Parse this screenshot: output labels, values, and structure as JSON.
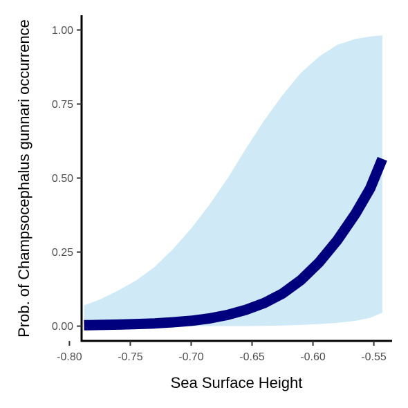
{
  "chart_data": {
    "type": "line",
    "title": "",
    "xlabel": "Sea Surface Height",
    "ylabel": "Prob. of  Champsocephalus gunnari  occurrence",
    "xlim": [
      -0.79,
      -0.535
    ],
    "ylim": [
      -0.05,
      1.05
    ],
    "xticks": [
      -0.8,
      -0.75,
      -0.7,
      -0.65,
      -0.6,
      -0.55
    ],
    "xtick_labels": [
      "-0.80",
      "-0.75",
      "-0.70",
      "-0.65",
      "-0.60",
      "-0.55"
    ],
    "yticks": [
      0.0,
      0.25,
      0.5,
      0.75,
      1.0
    ],
    "ytick_labels": [
      "0.00",
      "0.25",
      "0.50",
      "0.75",
      "1.00"
    ],
    "grid": false,
    "legend": "none",
    "colors": {
      "line": "#00007f",
      "ribbon": "#cfeaf6",
      "axis": "#000000",
      "tick_text": "#4d4d4d"
    },
    "series": [
      {
        "x": [
          -0.788,
          -0.775,
          -0.76,
          -0.745,
          -0.73,
          -0.715,
          -0.7,
          -0.685,
          -0.67,
          -0.655,
          -0.64,
          -0.625,
          -0.61,
          -0.595,
          -0.58,
          -0.565,
          -0.553,
          -0.543
        ],
        "y": [
          0.003,
          0.004,
          0.005,
          0.007,
          0.009,
          0.013,
          0.018,
          0.026,
          0.038,
          0.055,
          0.078,
          0.11,
          0.155,
          0.215,
          0.29,
          0.38,
          0.465,
          0.565
        ],
        "lower": [
          0.0,
          0.0,
          0.0,
          0.0,
          0.0,
          0.0,
          0.0,
          0.0,
          0.0,
          0.0,
          0.001,
          0.002,
          0.004,
          0.007,
          0.011,
          0.018,
          0.028,
          0.045
        ],
        "upper": [
          0.07,
          0.09,
          0.12,
          0.155,
          0.2,
          0.26,
          0.33,
          0.41,
          0.5,
          0.6,
          0.695,
          0.78,
          0.855,
          0.91,
          0.95,
          0.97,
          0.978,
          0.982
        ]
      }
    ]
  }
}
